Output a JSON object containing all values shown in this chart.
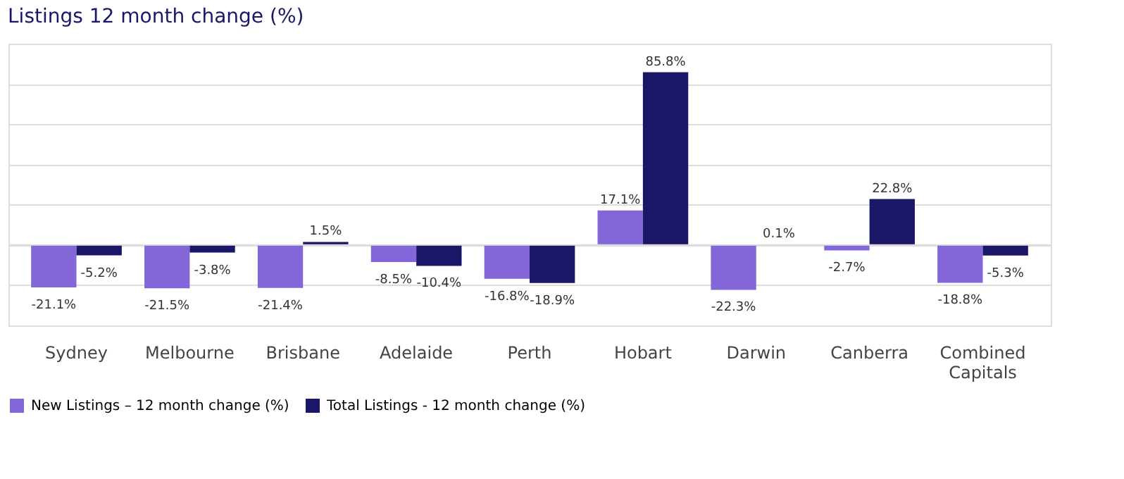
{
  "chart_data": {
    "type": "bar",
    "title": "Listings 12 month change (%)",
    "categories": [
      "Sydney",
      "Melbourne",
      "Brisbane",
      "Adelaide",
      "Perth",
      "Hobart",
      "Darwin",
      "Canberra",
      "Combined Capitals"
    ],
    "series": [
      {
        "name": "New Listings – 12 month change (%)",
        "color": "#8367d8",
        "values": [
          -21.1,
          -21.5,
          -21.4,
          -8.5,
          -16.8,
          17.1,
          -22.3,
          -2.7,
          -18.8
        ],
        "value_labels": [
          "-21.1%",
          "-21.5%",
          "-21.4%",
          "-8.5%",
          "-16.8%",
          "17.1%",
          "-22.3%",
          "-2.7%",
          "-18.8%"
        ]
      },
      {
        "name": "Total Listings - 12 month change (%)",
        "color": "#1a1769",
        "values": [
          -5.2,
          -3.8,
          1.5,
          -10.4,
          -18.9,
          85.8,
          0.1,
          22.8,
          -5.3
        ],
        "value_labels": [
          "-5.2%",
          "-3.8%",
          "1.5%",
          "-10.4%",
          "-18.9%",
          "85.8%",
          "0.1%",
          "22.8%",
          "-5.3%"
        ]
      }
    ],
    "ylim": [
      -40,
      100
    ],
    "grid": "y",
    "legend": "bottom left",
    "tick_labels": "x"
  }
}
